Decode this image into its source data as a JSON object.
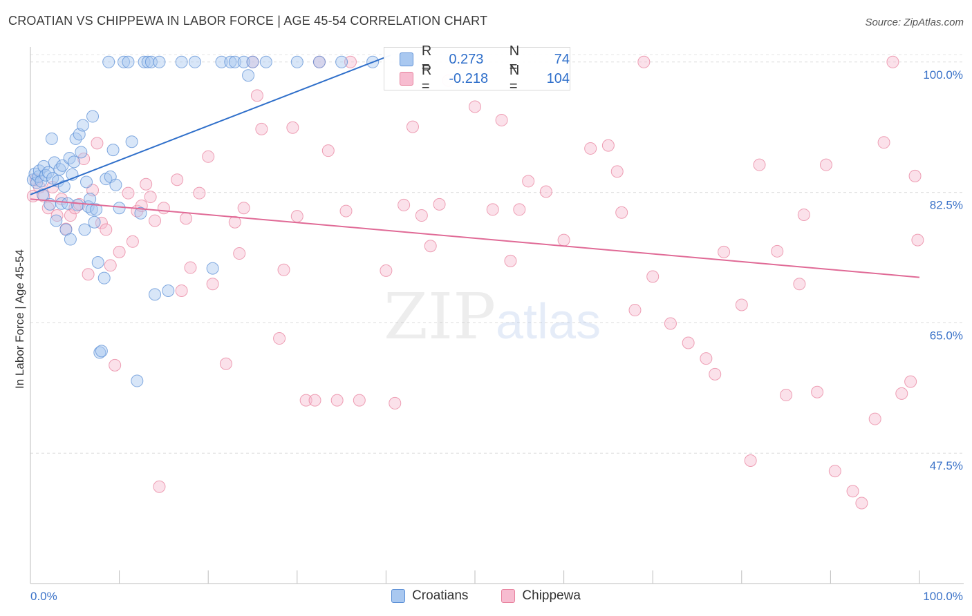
{
  "title": "CROATIAN VS CHIPPEWA IN LABOR FORCE | AGE 45-54 CORRELATION CHART",
  "source": "Source: ZipAtlas.com",
  "watermark": {
    "zip": "ZIP",
    "atlas": "atlas"
  },
  "legend": {
    "blue": {
      "r_label": "R =",
      "r_value": "0.273",
      "n_label": "N =",
      "n_value": "74"
    },
    "pink": {
      "r_label": "R =",
      "r_value": "-0.218",
      "n_label": "N =",
      "n_value": "104"
    }
  },
  "bottom_legend": {
    "blue_label": "Croatians",
    "pink_label": "Chippewa"
  },
  "colors": {
    "blue": "#5b8fd6",
    "blue_fill": "#a9c8f0",
    "pink": "#e8829e",
    "pink_fill": "#f7bcd0",
    "blue_line": "#2f6fca",
    "pink_line": "#e06a96",
    "tick_label": "#3a72c8"
  },
  "chart_data": {
    "type": "scatter",
    "title": "CROATIAN VS CHIPPEWA IN LABOR FORCE | AGE 45-54 CORRELATION CHART",
    "xlabel": "",
    "ylabel": "In Labor Force | Age 45-54",
    "xlim": [
      0,
      100
    ],
    "ylim": [
      30,
      101
    ],
    "x_tick_labels": [
      "0.0%",
      "100.0%"
    ],
    "y_ticks": [
      47.5,
      65.0,
      82.5,
      100.0
    ],
    "y_tick_labels": [
      "47.5%",
      "65.0%",
      "82.5%",
      "100.0%"
    ],
    "series": [
      {
        "name": "Croatians",
        "x": [
          0.3,
          0.5,
          0.7,
          0.9,
          1.0,
          1.2,
          1.4,
          1.5,
          1.7,
          2.0,
          2.2,
          2.4,
          2.5,
          2.7,
          2.9,
          3.1,
          3.3,
          3.5,
          3.6,
          3.8,
          4.0,
          4.2,
          4.4,
          4.5,
          4.7,
          4.9,
          5.1,
          5.3,
          5.5,
          5.7,
          5.9,
          6.1,
          6.3,
          6.5,
          6.7,
          6.9,
          7.0,
          7.2,
          7.4,
          7.6,
          7.8,
          8.0,
          8.3,
          8.5,
          8.8,
          9.0,
          9.3,
          9.6,
          10.0,
          10.5,
          11.0,
          11.4,
          12.0,
          12.4,
          12.8,
          13.2,
          13.6,
          14.0,
          14.5,
          15.5,
          17.0,
          18.5,
          20.5,
          21.5,
          22.5,
          23.0,
          24.0,
          25.0,
          24.5,
          26.5,
          30.0,
          32.5,
          35.0,
          38.5
        ],
        "y": [
          84.2,
          85.0,
          83.8,
          84.6,
          85.4,
          84.0,
          82.2,
          86.0,
          84.8,
          85.2,
          80.9,
          89.7,
          84.4,
          86.5,
          78.7,
          84.0,
          85.6,
          81.0,
          86.1,
          83.3,
          77.5,
          81.0,
          87.1,
          76.2,
          84.9,
          86.6,
          89.7,
          80.8,
          90.3,
          87.9,
          91.5,
          77.5,
          83.9,
          80.6,
          81.6,
          80.2,
          92.7,
          78.5,
          80.2,
          73.1,
          61.0,
          61.2,
          71.0,
          84.3,
          100,
          84.6,
          88.2,
          83.5,
          80.4,
          100,
          100,
          89.3,
          57.2,
          79.7,
          100,
          100,
          100,
          68.8,
          100,
          69.3,
          100,
          100,
          72.3,
          100,
          100,
          100,
          100,
          100,
          98.2,
          100,
          100,
          100,
          100,
          100
        ]
      },
      {
        "name": "Chippewa",
        "x": [
          0.3,
          0.6,
          1.0,
          1.5,
          2.0,
          2.5,
          3.0,
          3.5,
          4.0,
          4.5,
          5.0,
          5.5,
          6.0,
          6.5,
          7.0,
          7.5,
          8.0,
          8.5,
          9.0,
          9.5,
          10.0,
          11.0,
          11.5,
          12.0,
          12.5,
          13.0,
          13.5,
          14.0,
          14.5,
          15.0,
          16.5,
          17.0,
          17.5,
          18.0,
          19.0,
          20.0,
          20.5,
          22.0,
          23.0,
          23.5,
          24.0,
          25.0,
          25.5,
          26.0,
          28.0,
          28.5,
          29.5,
          30.0,
          31.0,
          32.0,
          32.5,
          33.5,
          34.5,
          35.5,
          36.0,
          37.0,
          40.0,
          41.0,
          42.0,
          43.0,
          44.0,
          45.0,
          46.0,
          47.0,
          48.0,
          50.0,
          52.0,
          53.0,
          54.0,
          55.0,
          56.0,
          58.0,
          60.0,
          63.0,
          65.0,
          66.5,
          68.0,
          70.0,
          72.0,
          74.0,
          76.0,
          77.0,
          78.0,
          80.0,
          81.0,
          82.0,
          84.0,
          85.0,
          86.5,
          87.0,
          88.5,
          89.5,
          90.5,
          92.5,
          93.5,
          95.0,
          96.0,
          97.0,
          98.0,
          99.0,
          99.5,
          99.8,
          66.0,
          69.0
        ],
        "y": [
          82.0,
          84.2,
          83.2,
          82.0,
          80.4,
          83.2,
          79.4,
          81.6,
          77.6,
          79.4,
          80.4,
          80.9,
          87.0,
          71.5,
          82.8,
          89.1,
          78.4,
          77.5,
          72.7,
          59.3,
          74.5,
          82.4,
          75.9,
          80.0,
          80.7,
          83.6,
          81.9,
          78.7,
          43.0,
          80.4,
          84.2,
          69.3,
          79.0,
          72.4,
          82.4,
          87.3,
          70.2,
          59.5,
          78.5,
          74.3,
          80.4,
          100,
          95.5,
          91.0,
          62.9,
          72.1,
          91.2,
          79.3,
          54.6,
          54.6,
          100,
          88.1,
          54.6,
          80.0,
          100,
          54.6,
          72.0,
          54.2,
          80.8,
          91.3,
          79.4,
          75.3,
          80.9,
          97.5,
          100,
          94.0,
          80.2,
          92.2,
          73.3,
          80.2,
          84.0,
          82.6,
          76.1,
          88.4,
          88.8,
          79.8,
          66.7,
          71.2,
          64.9,
          62.3,
          60.2,
          58.1,
          74.5,
          67.4,
          46.5,
          86.2,
          74.6,
          55.3,
          70.2,
          79.5,
          55.7,
          86.2,
          45.1,
          42.4,
          40.8,
          52.1,
          89.2,
          100,
          55.5,
          57.1,
          84.7,
          76.1,
          85.3,
          100
        ]
      }
    ],
    "trend_lines": [
      {
        "series": "Croatians",
        "x0": 0,
        "y0": 82.2,
        "x1": 40.5,
        "y1": 100.9
      },
      {
        "series": "Chippewa",
        "x0": 0,
        "y0": 81.6,
        "x1": 100,
        "y1": 71.1
      }
    ]
  }
}
